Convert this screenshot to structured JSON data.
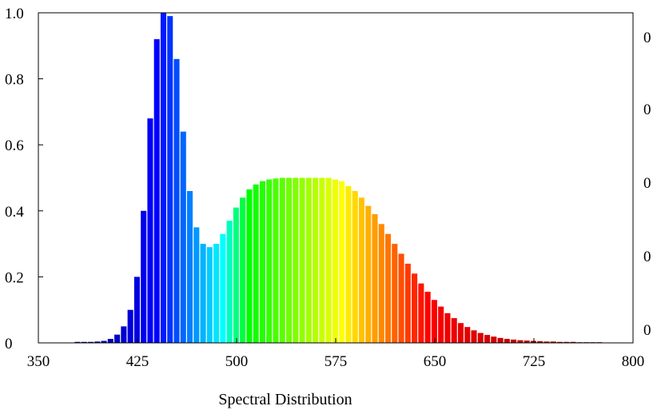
{
  "chart_data": {
    "type": "bar",
    "title": "",
    "xlabel": "Spectral Distribution",
    "ylabel": "",
    "xlim": [
      350,
      800
    ],
    "ylim": [
      0,
      1.0
    ],
    "x_ticks": [
      "350",
      "425",
      "500",
      "575",
      "650",
      "725",
      "800"
    ],
    "y_ticks": [
      "0",
      "0.2",
      "0.4",
      "0.6",
      "0.8",
      "1.0"
    ],
    "right_axis_ticks": [
      "0",
      "0",
      "0",
      "0",
      "0"
    ],
    "grid": false,
    "legend": "none",
    "bar_coloring": "wavelength spectrum (violet to red)",
    "x": [
      380,
      385,
      390,
      395,
      400,
      405,
      410,
      415,
      420,
      425,
      430,
      435,
      440,
      445,
      450,
      455,
      460,
      465,
      470,
      475,
      480,
      485,
      490,
      495,
      500,
      505,
      510,
      515,
      520,
      525,
      530,
      535,
      540,
      545,
      550,
      555,
      560,
      565,
      570,
      575,
      580,
      585,
      590,
      595,
      600,
      605,
      610,
      615,
      620,
      625,
      630,
      635,
      640,
      645,
      650,
      655,
      660,
      665,
      670,
      675,
      680,
      685,
      690,
      695,
      700,
      705,
      710,
      715,
      720,
      725,
      730,
      735,
      740,
      745,
      750,
      755,
      760,
      765,
      770,
      775
    ],
    "values": [
      0.003,
      0.003,
      0.003,
      0.004,
      0.006,
      0.012,
      0.025,
      0.05,
      0.1,
      0.2,
      0.4,
      0.68,
      0.92,
      1.0,
      0.99,
      0.86,
      0.64,
      0.46,
      0.35,
      0.3,
      0.29,
      0.3,
      0.33,
      0.37,
      0.41,
      0.44,
      0.465,
      0.48,
      0.49,
      0.495,
      0.498,
      0.5,
      0.5,
      0.5,
      0.5,
      0.5,
      0.5,
      0.5,
      0.5,
      0.495,
      0.49,
      0.475,
      0.46,
      0.44,
      0.415,
      0.39,
      0.36,
      0.33,
      0.3,
      0.27,
      0.24,
      0.21,
      0.18,
      0.155,
      0.13,
      0.11,
      0.09,
      0.075,
      0.06,
      0.048,
      0.038,
      0.03,
      0.024,
      0.019,
      0.015,
      0.012,
      0.01,
      0.008,
      0.007,
      0.006,
      0.005,
      0.004,
      0.004,
      0.003,
      0.003,
      0.003,
      0.002,
      0.002,
      0.002,
      0.002
    ]
  }
}
